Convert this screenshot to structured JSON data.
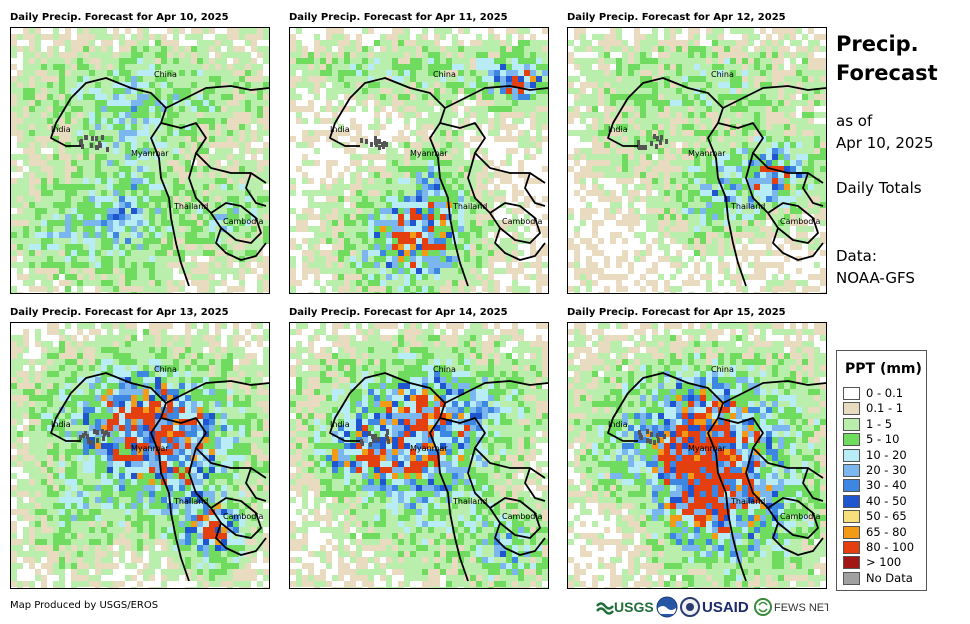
{
  "panels": [
    {
      "title": "Daily Precip. Forecast for Apr 10, 2025",
      "pattern": 1
    },
    {
      "title": "Daily Precip. Forecast for Apr 11, 2025",
      "pattern": 2
    },
    {
      "title": "Daily Precip. Forecast for Apr 12, 2025",
      "pattern": 3
    },
    {
      "title": "Daily Precip. Forecast for Apr 13, 2025",
      "pattern": 4
    },
    {
      "title": "Daily Precip. Forecast for Apr 14, 2025",
      "pattern": 5
    },
    {
      "title": "Daily Precip. Forecast for Apr 15, 2025",
      "pattern": 6
    }
  ],
  "country_labels": {
    "china": "China",
    "india": "India",
    "myanmar": "Myanmar",
    "thailand": "Thailand",
    "cambodia": "Cambodia"
  },
  "side": {
    "title_line1": "Precip.",
    "title_line2": "Forecast",
    "as_of": "as of",
    "date": "Apr 10, 2025",
    "totals": "Daily Totals",
    "data_label": "Data:",
    "data_source": "NOAA-GFS"
  },
  "legend": {
    "title": "PPT (mm)",
    "items": [
      {
        "label": "0 - 0.1",
        "color": "#ffffff"
      },
      {
        "label": "0.1 - 1",
        "color": "#e8dbc0"
      },
      {
        "label": "1 - 5",
        "color": "#b9eeac"
      },
      {
        "label": "5 - 10",
        "color": "#6fdc5f"
      },
      {
        "label": "10 - 20",
        "color": "#b8ecf6"
      },
      {
        "label": "20 - 30",
        "color": "#7cb6ee"
      },
      {
        "label": "30 - 40",
        "color": "#3d86e2"
      },
      {
        "label": "40 - 50",
        "color": "#1f56cf"
      },
      {
        "label": "50 - 65",
        "color": "#f7e07a"
      },
      {
        "label": "65 - 80",
        "color": "#f39a16"
      },
      {
        "label": "80 - 100",
        "color": "#e4400f"
      },
      {
        "label": "> 100",
        "color": "#a21616"
      },
      {
        "label": "No Data",
        "color": "#a0a0a0"
      }
    ]
  },
  "credit": "Map Produced by USGS/EROS",
  "logos": {
    "usgs": "USGS",
    "usaid": "USAID",
    "fewsnet": "FEWS NET"
  }
}
